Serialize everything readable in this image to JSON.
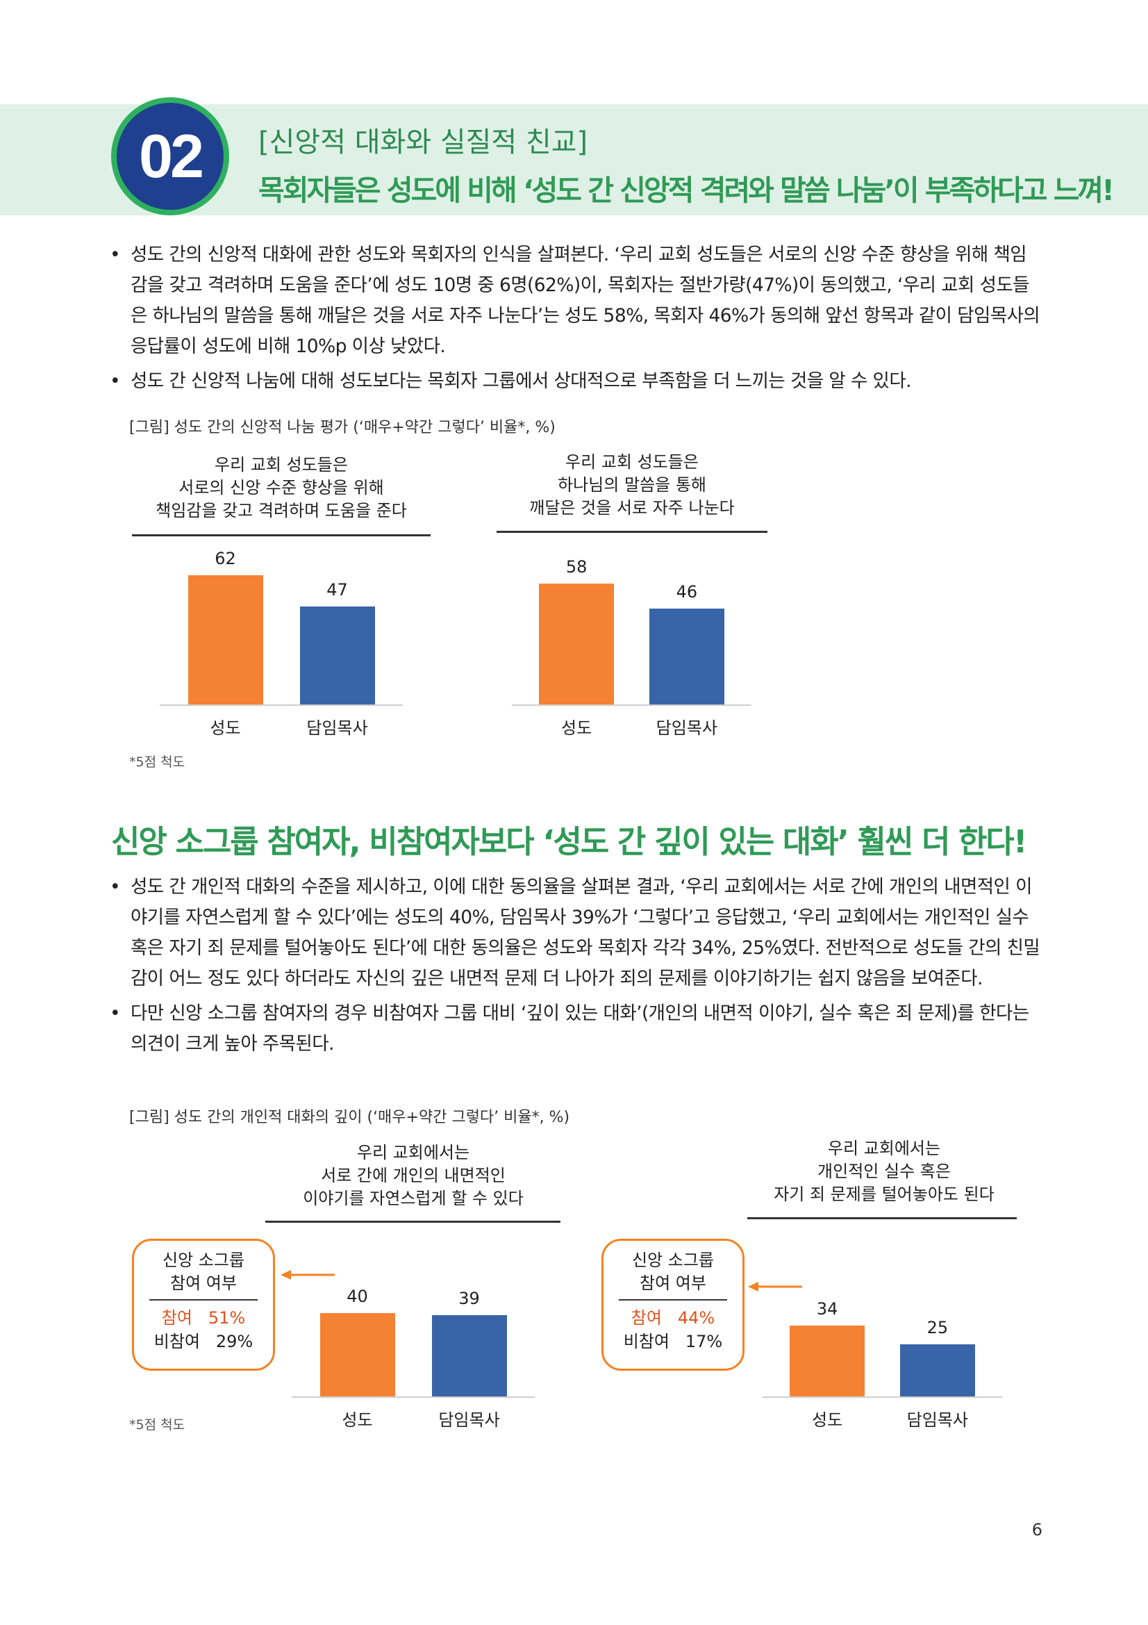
{
  "header": {
    "number": "02",
    "subtitle": "[신앙적 대화와 실질적 친교]",
    "title": "목회자들은 성도에 비해 ‘성도 간 신앙적 격려와 말씀 나눔’이 부족하다고 느껴!"
  },
  "section1": {
    "bullets": [
      "성도 간의 신앙적 대화에 관한 성도와 목회자의 인식을 살펴본다. ‘우리 교회 성도들은 서로의 신앙 수준 향상을 위해 책임감을 갖고 격려하며 도움을 준다’에 성도 10명 중 6명(62%)이, 목회자는 절반가량(47%)이 동의했고, ‘우리 교회 성도들은 하나님의 말씀을 통해 깨달은 것을 서로 자주 나눈다’는 성도 58%, 목회자 46%가 동의해 앞선 항목과 같이 담임목사의 응답률이 성도에 비해 10%p 이상 낮았다.",
      "성도 간 신앙적 나눔에 대해 성도보다는 목회자 그룹에서 상대적으로 부족함을 더 느끼는 것을 알 수 있다."
    ],
    "figure_caption": "[그림] 성도 간의 신앙적 나눔 평가 (‘매우+약간 그렇다’ 비율*, %)",
    "footnote": "*5점 척도"
  },
  "section2": {
    "title": "신앙 소그룹 참여자, 비참여자보다 ‘성도 간 깊이 있는 대화’ 훨씬 더 한다!",
    "bullets": [
      "성도 간 개인적 대화의 수준을 제시하고, 이에 대한 동의율을 살펴본 결과, ‘우리 교회에서는 서로 간에 개인의 내면적인 이야기를 자연스럽게 할 수 있다’에는 성도의 40%, 담임목사 39%가 ‘그렇다’고 응답했고, ‘우리 교회에서는 개인적인 실수 혹은 자기 죄 문제를 털어놓아도 된다’에 대한 동의율은 성도와 목회자 각각 34%, 25%였다. 전반적으로 성도들 간의 친밀감이 어느 정도 있다 하더라도 자신의 깊은 내면적 문제 더 나아가 죄의 문제를 이야기하기는 쉽지 않음을 보여준다.",
      "다만 신앙 소그룹 참여자의 경우 비참여자 그룹 대비 ‘깊이 있는 대화’(개인의 내면적 이야기, 실수 혹은 죄 문제)를 한다는 의견이 크게 높아 주목된다."
    ],
    "figure_caption": "[그림] 성도 간의 개인적 대화의 깊이 (‘매우+약간 그렇다’ 비율*, %)",
    "footnote": "*5점 척도"
  },
  "callouts": [
    {
      "title_line1": "신앙 소그룹",
      "title_line2": "참여 여부",
      "row1_label": "참여",
      "row1_value": "51%",
      "row2_label": "비참여",
      "row2_value": "29%"
    },
    {
      "title_line1": "신앙 소그룹",
      "title_line2": "참여 여부",
      "row1_label": "참여",
      "row1_value": "44%",
      "row2_label": "비참여",
      "row2_value": "17%"
    }
  ],
  "colors": {
    "saint": "#f58233",
    "pastor": "#3a64a8",
    "accent_green": "#2f9a56",
    "badge_blue": "#1f3f8f"
  },
  "chart_data": [
    {
      "type": "bar",
      "title_lines": [
        "우리 교회 성도들은",
        "서로의 신앙 수준 향상을 위해",
        "책임감을 갖고 격려하며 도움을 준다"
      ],
      "categories": [
        "성도",
        "담임목사"
      ],
      "values": [
        62,
        47
      ],
      "ylim": [
        0,
        62
      ]
    },
    {
      "type": "bar",
      "title_lines": [
        "우리 교회 성도들은",
        "하나님의 말씀을 통해",
        "깨달은 것을 서로 자주 나눈다"
      ],
      "categories": [
        "성도",
        "담임목사"
      ],
      "values": [
        58,
        46
      ],
      "ylim": [
        0,
        62
      ]
    },
    {
      "type": "bar",
      "title_lines": [
        "우리 교회에서는",
        "서로 간에 개인의 내면적인",
        "이야기를 자연스럽게 할 수 있다"
      ],
      "categories": [
        "성도",
        "담임목사"
      ],
      "values": [
        40,
        39
      ],
      "ylim": [
        0,
        62
      ]
    },
    {
      "type": "bar",
      "title_lines": [
        "우리 교회에서는",
        "개인적인 실수 혹은",
        "자기 죄 문제를 털어놓아도 된다"
      ],
      "categories": [
        "성도",
        "담임목사"
      ],
      "values": [
        34,
        25
      ],
      "ylim": [
        0,
        62
      ]
    }
  ],
  "page_number": "6"
}
